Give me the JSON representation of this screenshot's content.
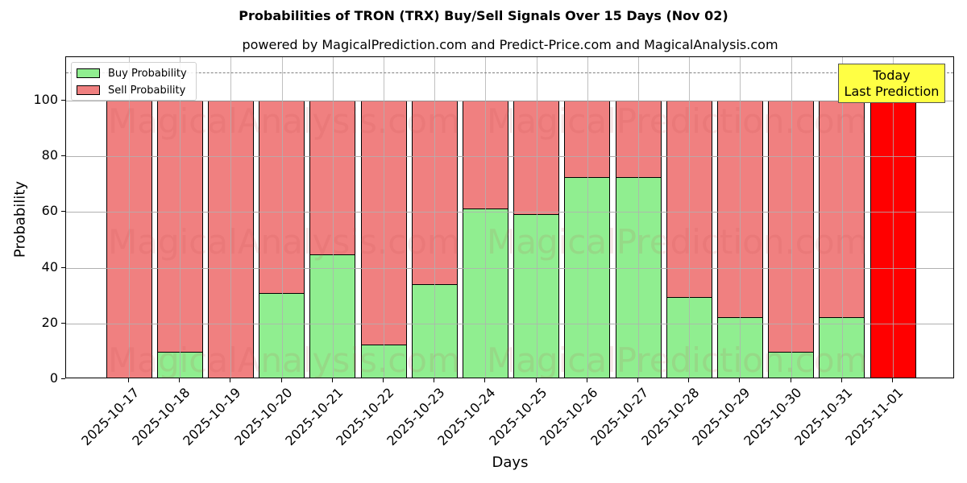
{
  "chart_data": {
    "type": "bar",
    "stacked": true,
    "title": "Probabilities of TRON (TRX) Buy/Sell Signals Over 15 Days (Nov 02)",
    "subtitle": "powered by MagicalPrediction.com and Predict-Price.com and MagicalAnalysis.com",
    "xlabel": "Days",
    "ylabel": "Probability",
    "ylim": [
      0,
      116
    ],
    "yticks": [
      0,
      20,
      40,
      60,
      80,
      100
    ],
    "grid": true,
    "legend_position": "upper left",
    "categories": [
      "2025-10-17",
      "2025-10-18",
      "2025-10-19",
      "2025-10-20",
      "2025-10-21",
      "2025-10-22",
      "2025-10-23",
      "2025-10-24",
      "2025-10-25",
      "2025-10-26",
      "2025-10-27",
      "2025-10-28",
      "2025-10-29",
      "2025-10-30",
      "2025-10-31",
      "2025-11-01"
    ],
    "series": [
      {
        "name": "Buy Probability",
        "color": "#90ee90",
        "values": [
          0,
          9.8,
          0,
          30.9,
          44.8,
          12.4,
          34.1,
          61.4,
          59.3,
          72.4,
          72.4,
          29.6,
          22.3,
          9.8,
          22.3,
          0
        ]
      },
      {
        "name": "Sell Probability",
        "color": "#f08080",
        "values": [
          100,
          90.2,
          100,
          69.1,
          55.2,
          87.6,
          65.9,
          38.6,
          40.7,
          27.6,
          27.6,
          70.4,
          77.7,
          90.2,
          77.7,
          100
        ]
      }
    ],
    "highlight": {
      "category": "2025-11-01",
      "color": "#ff0000",
      "label": "Today\nLast Prediction"
    },
    "reference_line": {
      "y": 110,
      "style": "dashed",
      "color": "#808080"
    },
    "annotations": [
      "Today",
      "Last Prediction"
    ],
    "watermarks": [
      "MagicalAnalysis.com",
      "MagicalPrediction.com"
    ]
  },
  "legend": {
    "buy": "Buy Probability",
    "sell": "Sell Probability"
  },
  "annotation": {
    "line1": "Today",
    "line2": "Last Prediction"
  },
  "watermark": {
    "left": "MagicalAnalysis.com",
    "right": "MagicalPrediction.com"
  },
  "colors": {
    "buy": "#90ee90",
    "sell": "#f08080",
    "today": "#ff0000",
    "annotation_bg": "#ffff44"
  }
}
